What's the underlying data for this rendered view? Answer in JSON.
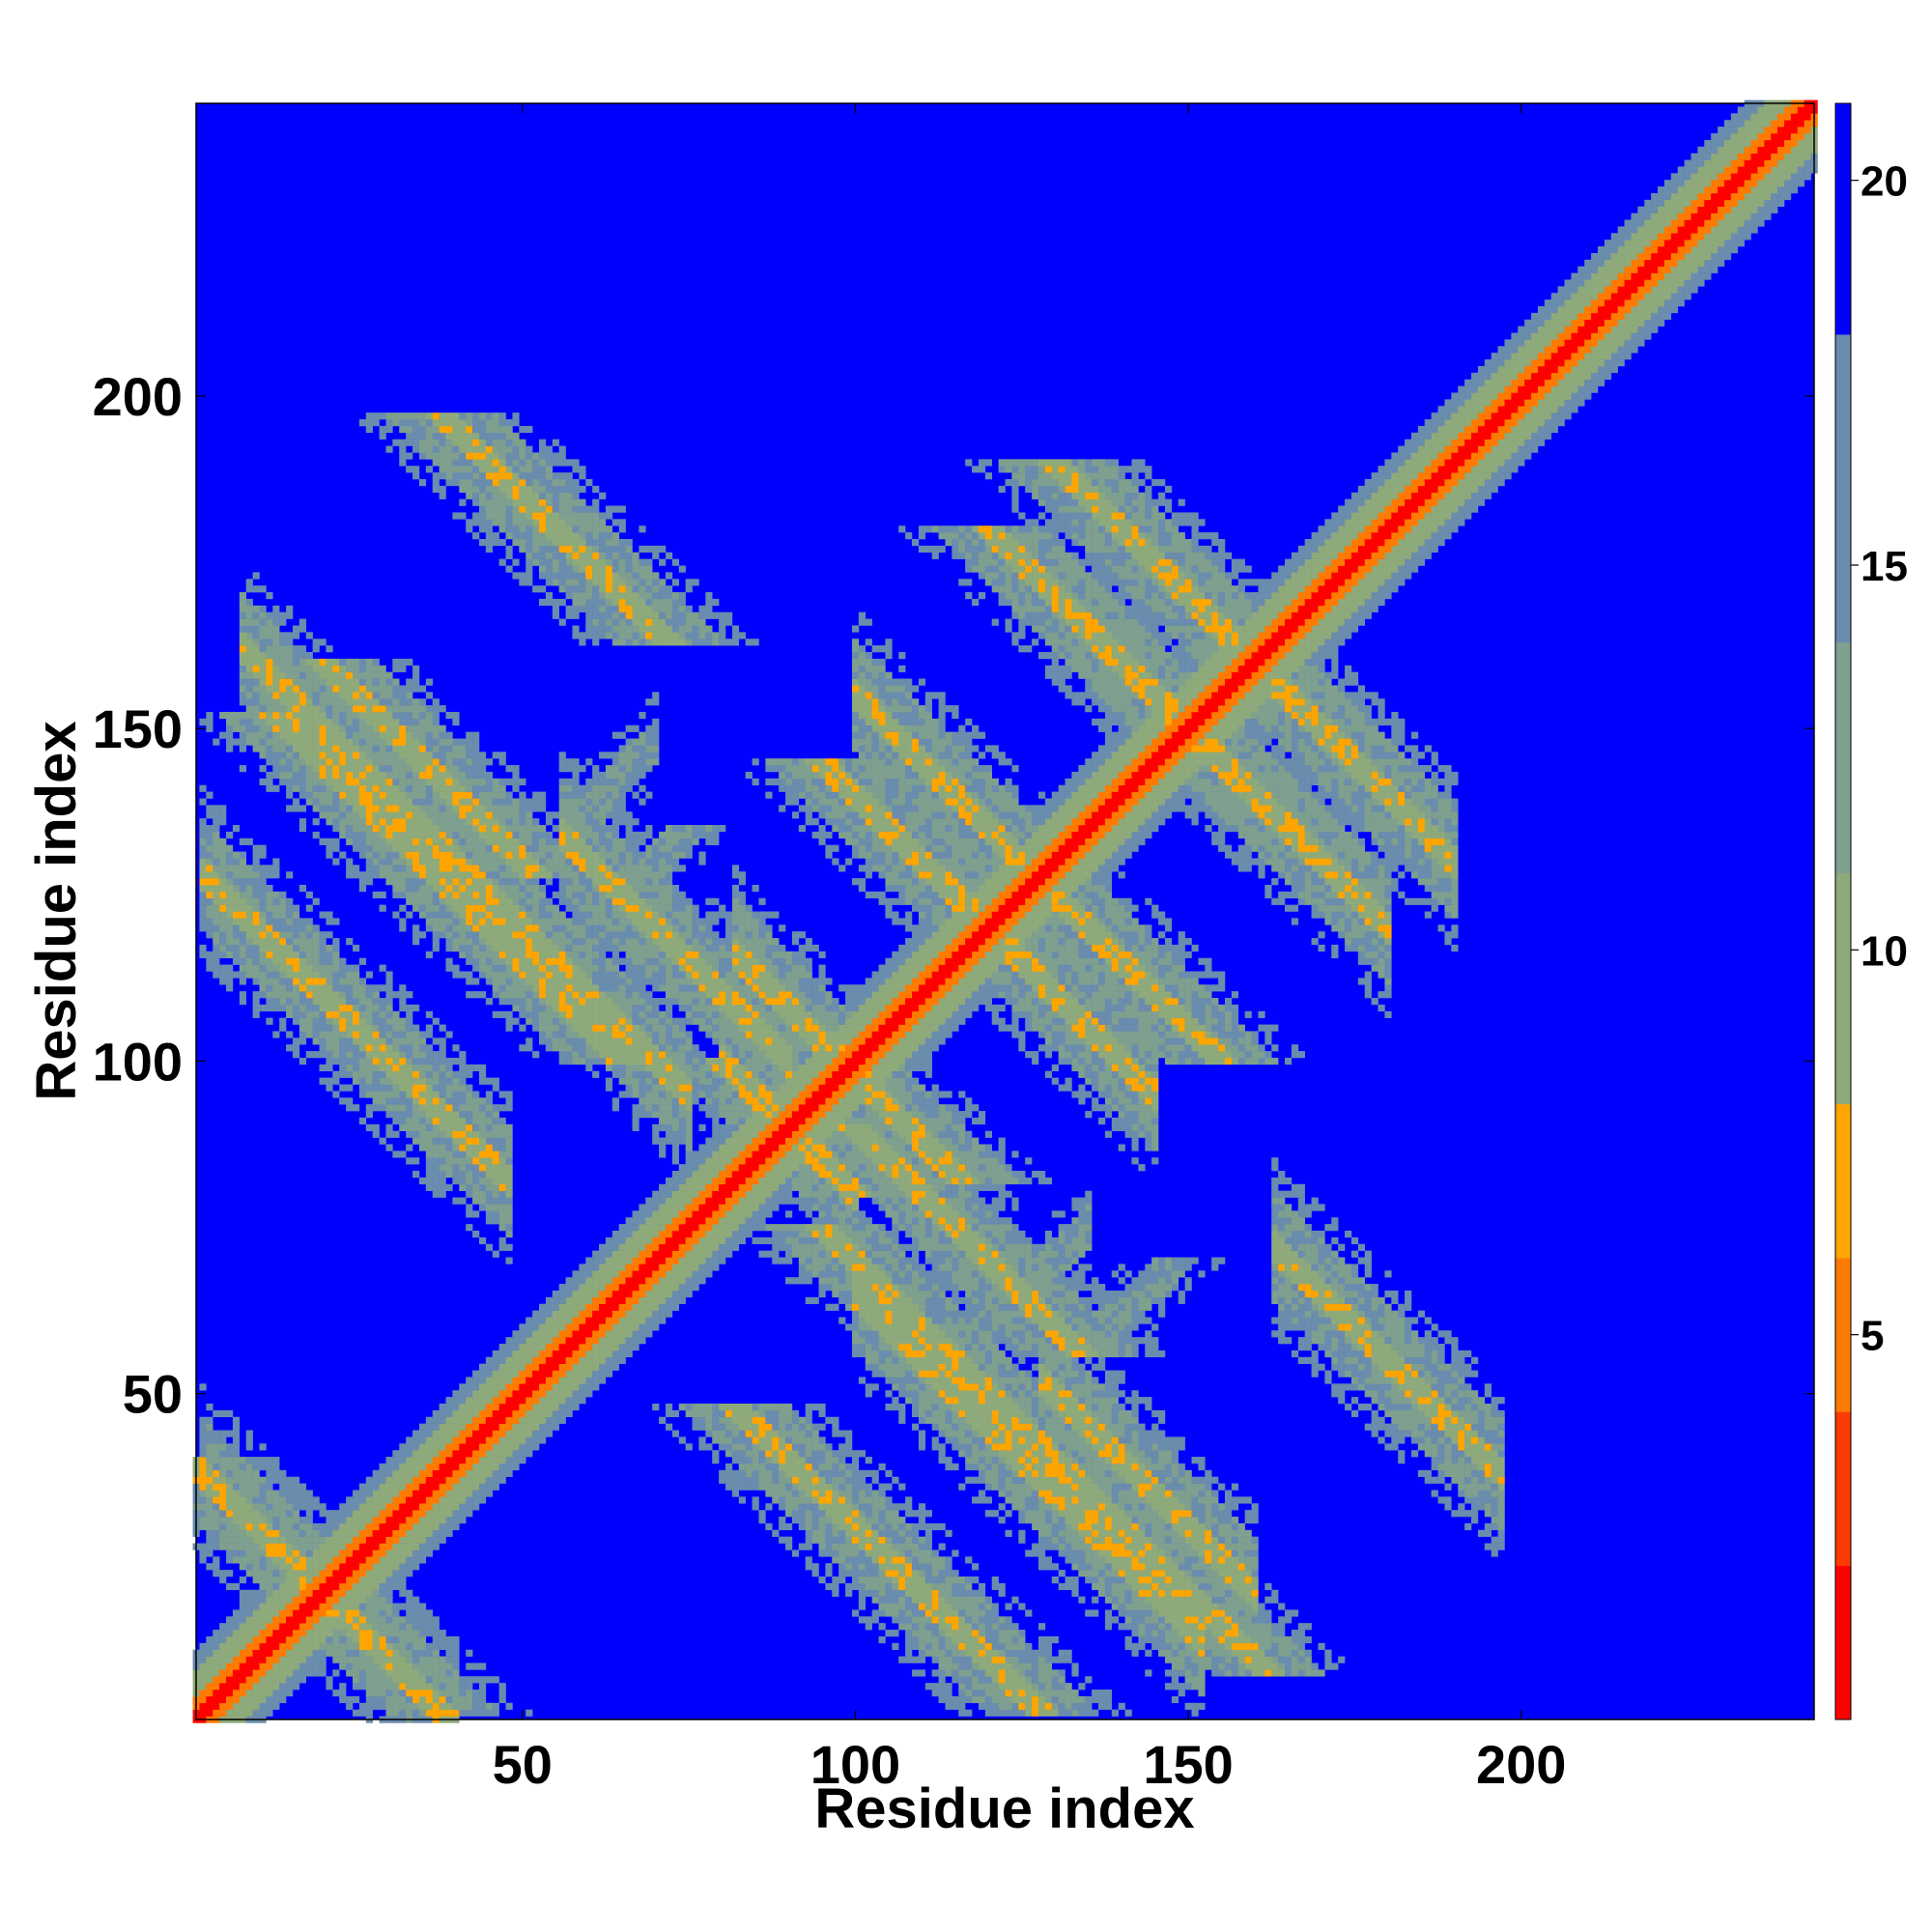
{
  "chart_data": {
    "type": "heatmap",
    "title": "",
    "xlabel": "Residue index",
    "ylabel": "Residue index",
    "xlim": [
      1,
      244
    ],
    "ylim": [
      1,
      244
    ],
    "x_ticks": [
      50,
      100,
      150,
      200
    ],
    "y_ticks": [
      50,
      100,
      150,
      200
    ],
    "colorbar": {
      "ticks": [
        5,
        10,
        15,
        20
      ],
      "range": [
        0,
        21
      ],
      "colors": [
        "#ff0000",
        "#ff3a00",
        "#ff7a00",
        "#ffa500",
        "#8faa7a",
        "#6a8cad",
        "#0000ff"
      ]
    },
    "background_value": 21,
    "description_of_pattern": "",
    "matrix_model": {
      "diagonal_core_halfwidth": 1.5,
      "diagonal_mid_halfwidth": 3.5,
      "diagonal_outer_halfwidth": 7,
      "diagonal_halo_halfwidth": 10,
      "antiparallel_bands": [
        {
          "sum": 130,
          "x_from": 2,
          "x_to": 48
        },
        {
          "sum": 170,
          "x_from": 8,
          "x_to": 75
        },
        {
          "sum": 190,
          "x_from": 56,
          "x_to": 90
        },
        {
          "sum": 198,
          "x_from": 82,
          "x_to": 110
        },
        {
          "sum": 180,
          "x_from": 80,
          "x_to": 100
        },
        {
          "sum": 255,
          "x_from": 100,
          "x_to": 130
        },
        {
          "sum": 300,
          "x_from": 130,
          "x_to": 180
        },
        {
          "sum": 320,
          "x_from": 150,
          "x_to": 190
        },
        {
          "sum": 240,
          "x_from": 115,
          "x_to": 145
        },
        {
          "sum": 235,
          "x_from": 163,
          "x_to": 197
        },
        {
          "sum": 180,
          "x_from": 128,
          "x_to": 160
        },
        {
          "sum": 165,
          "x_from": 100,
          "x_to": 152
        },
        {
          "sum": 40,
          "x_from": 2,
          "x_to": 40
        }
      ],
      "parallel_bands": [
        {
          "offset": 78,
          "x_from": 56,
          "x_to": 70
        },
        {
          "offset": -60,
          "x_from": 110,
          "x_to": 135
        }
      ]
    }
  },
  "labels": {
    "x_axis_title": "Residue index",
    "y_axis_title": "Residue index",
    "x_ticks": [
      "50",
      "100",
      "150",
      "200"
    ],
    "y_ticks": [
      "50",
      "100",
      "150",
      "200"
    ],
    "colorbar_ticks": [
      "5",
      "10",
      "15",
      "20"
    ]
  }
}
